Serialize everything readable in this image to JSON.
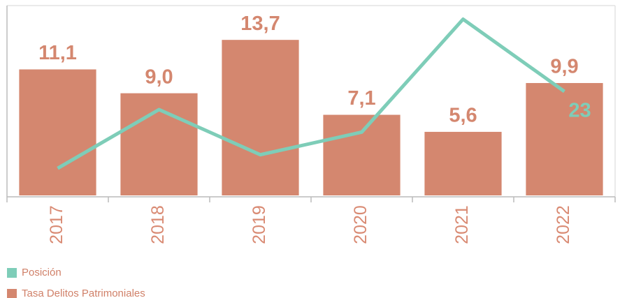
{
  "chart_data": {
    "type": "bar",
    "categories": [
      "2017",
      "2018",
      "2019",
      "2020",
      "2021",
      "2022"
    ],
    "ylim": [
      0,
      16.6
    ],
    "y2lim": [
      0,
      41.7
    ],
    "series": [
      {
        "name": "Posición",
        "type": "line",
        "axis": "y2",
        "color": "#7ecdb8",
        "values": [
          6,
          19,
          9,
          14,
          39,
          23
        ],
        "value_labels": [
          null,
          null,
          null,
          null,
          null,
          "23"
        ]
      },
      {
        "name": "Tasa Delitos Patrimoniales",
        "type": "bar",
        "color": "#d4876f",
        "values": [
          11.1,
          9.0,
          13.7,
          7.1,
          5.6,
          9.9
        ],
        "value_labels": [
          "11,1",
          "9,0",
          "13,7",
          "7,1",
          "5,6",
          "9,9"
        ]
      }
    ]
  }
}
